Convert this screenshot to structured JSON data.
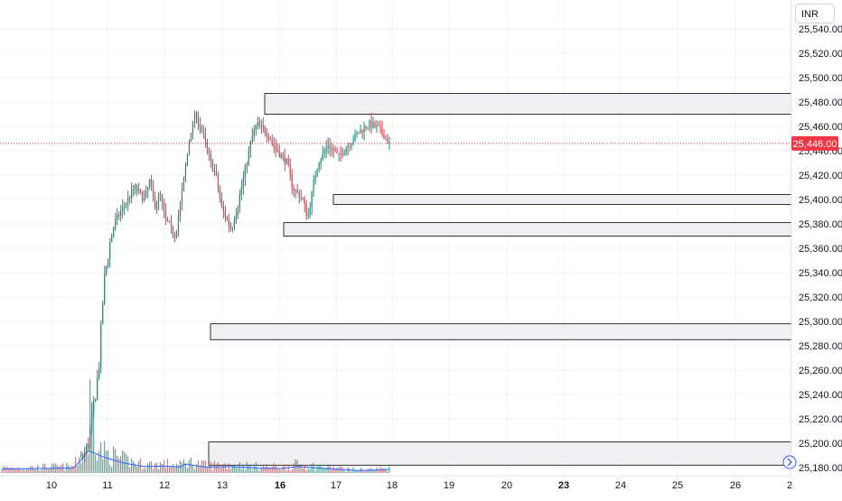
{
  "currency_label": "INR",
  "current_price_label": "25,446.00",
  "colors": {
    "up": "#089981",
    "down": "#f23645",
    "zone_fill": "#f0f0f2",
    "zone_stroke": "#000000",
    "grid": "#f0f3fa",
    "price_line": "#f23645",
    "volume_ma": "#2962ff"
  },
  "chart_data": {
    "type": "candlestick",
    "title": "",
    "xlabel": "",
    "ylabel": "",
    "ylim": [
      25175,
      25560
    ],
    "y_ticks": [
      "25,180.00",
      "25,200.00",
      "25,220.00",
      "25,240.00",
      "25,260.00",
      "25,280.00",
      "25,300.00",
      "25,320.00",
      "25,340.00",
      "25,360.00",
      "25,380.00",
      "25,400.00",
      "25,420.00",
      "25,440.00",
      "25,460.00",
      "25,480.00",
      "25,500.00",
      "25,520.00",
      "25,540.00"
    ],
    "x_ticks": [
      {
        "label": "10",
        "bold": false
      },
      {
        "label": "11",
        "bold": false
      },
      {
        "label": "12",
        "bold": false
      },
      {
        "label": "13",
        "bold": false
      },
      {
        "label": "16",
        "bold": true
      },
      {
        "label": "17",
        "bold": false
      },
      {
        "label": "18",
        "bold": false
      },
      {
        "label": "19",
        "bold": false
      },
      {
        "label": "20",
        "bold": false
      },
      {
        "label": "23",
        "bold": true
      },
      {
        "label": "24",
        "bold": false
      },
      {
        "label": "25",
        "bold": false
      },
      {
        "label": "26",
        "bold": false
      },
      {
        "label": "2",
        "bold": false
      }
    ],
    "current_price": 25446,
    "zones": [
      {
        "top": 25487,
        "bottom": 25470
      },
      {
        "top": 25404,
        "bottom": 25396
      },
      {
        "top": 25381,
        "bottom": 25370
      },
      {
        "top": 25298,
        "bottom": 25285
      },
      {
        "top": 25201,
        "bottom": 25182
      }
    ],
    "path_keypoints": [
      [
        0,
        25195
      ],
      [
        5,
        25189
      ],
      [
        10,
        25193
      ],
      [
        14,
        25186
      ],
      [
        15,
        25188
      ],
      [
        16,
        25190
      ],
      [
        17,
        25200
      ],
      [
        18,
        25230
      ],
      [
        19,
        25260
      ],
      [
        20,
        25330
      ],
      [
        21,
        25360
      ],
      [
        22,
        25380
      ],
      [
        24,
        25395
      ],
      [
        26,
        25410
      ],
      [
        28,
        25400
      ],
      [
        29,
        25415
      ],
      [
        30,
        25395
      ],
      [
        31,
        25405
      ],
      [
        32,
        25385
      ],
      [
        34,
        25370
      ],
      [
        35,
        25395
      ],
      [
        36,
        25425
      ],
      [
        37,
        25455
      ],
      [
        38,
        25470
      ],
      [
        39,
        25460
      ],
      [
        40,
        25445
      ],
      [
        41,
        25430
      ],
      [
        42,
        25420
      ],
      [
        43,
        25395
      ],
      [
        44,
        25385
      ],
      [
        45,
        25376
      ],
      [
        46,
        25390
      ],
      [
        47,
        25410
      ],
      [
        48,
        25430
      ],
      [
        49,
        25450
      ],
      [
        50,
        25462
      ],
      [
        52,
        25455
      ],
      [
        54,
        25440
      ],
      [
        56,
        25430
      ],
      [
        57,
        25410
      ],
      [
        58,
        25405
      ],
      [
        59,
        25400
      ],
      [
        60,
        25385
      ],
      [
        61,
        25410
      ],
      [
        62,
        25430
      ],
      [
        64,
        25445
      ],
      [
        66,
        25435
      ],
      [
        68,
        25445
      ],
      [
        70,
        25455
      ],
      [
        72,
        25462
      ],
      [
        74,
        25458
      ],
      [
        75,
        25452
      ],
      [
        76,
        25446
      ]
    ],
    "volume_profile": [
      [
        0,
        0.08
      ],
      [
        14,
        0.1
      ],
      [
        15,
        0.2
      ],
      [
        17,
        0.45
      ],
      [
        20,
        0.32
      ],
      [
        24,
        0.2
      ],
      [
        28,
        0.13
      ],
      [
        32,
        0.14
      ],
      [
        35,
        0.12
      ],
      [
        36,
        0.18
      ],
      [
        40,
        0.12
      ],
      [
        45,
        0.13
      ],
      [
        50,
        0.1
      ],
      [
        55,
        0.09
      ],
      [
        58,
        0.13
      ],
      [
        65,
        0.08
      ],
      [
        70,
        0.05
      ],
      [
        76,
        0.07
      ]
    ]
  }
}
